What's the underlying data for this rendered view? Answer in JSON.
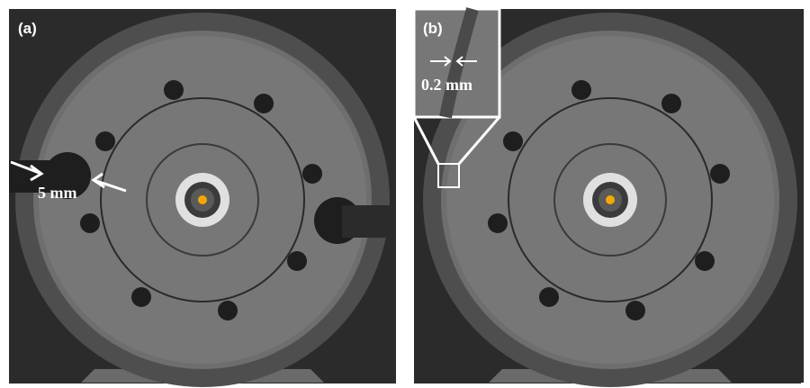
{
  "panels": [
    {
      "label": "(a)",
      "annotation": "5 mm"
    },
    {
      "label": "(b)",
      "annotation": "0.2 mm"
    }
  ]
}
